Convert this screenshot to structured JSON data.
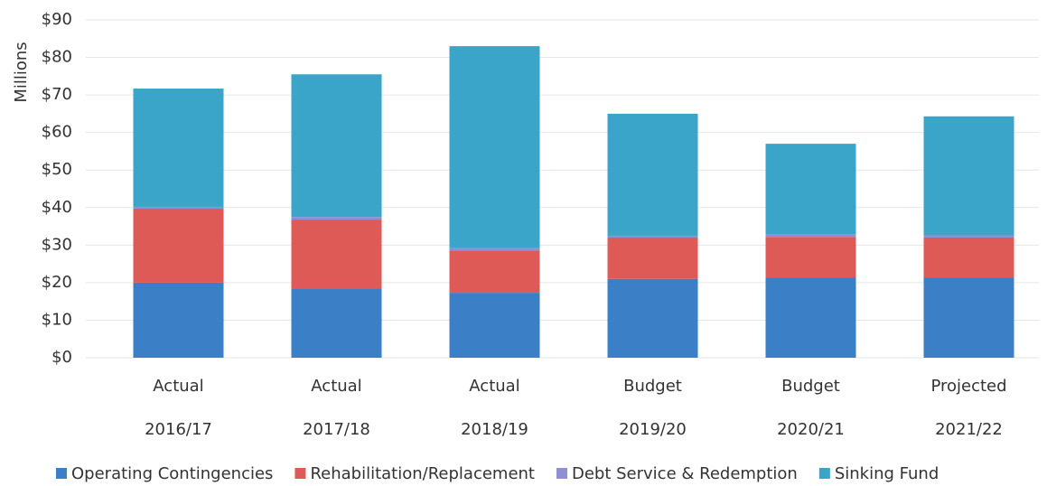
{
  "chart_data": {
    "type": "stacked-bar",
    "y_label": "Millions",
    "categories": [
      [
        "Actual",
        "2016/17"
      ],
      [
        "Actual",
        "2017/18"
      ],
      [
        "Actual",
        "2018/19"
      ],
      [
        "Budget",
        "2019/20"
      ],
      [
        "Budget",
        "2020/21"
      ],
      [
        "Projected",
        "2021/22"
      ]
    ],
    "series": [
      {
        "name": "Operating Contingencies",
        "color": "#3b7fc6",
        "values": [
          20,
          18.5,
          17.3,
          21,
          21.4,
          21.4
        ]
      },
      {
        "name": "Rehabilitation/Replacement",
        "color": "#dd5a56",
        "values": [
          19.7,
          18.3,
          11.3,
          11,
          10.8,
          10.6
        ]
      },
      {
        "name": "Debt Service & Redemption",
        "color": "#8f8fd6",
        "values": [
          0.5,
          0.7,
          0.6,
          0.5,
          0.6,
          0.6
        ]
      },
      {
        "name": "Sinking Fund",
        "color": "#3aa5c8",
        "values": [
          31.5,
          38,
          53.8,
          32.5,
          24.2,
          31.7
        ]
      }
    ],
    "ylim": [
      0,
      90
    ],
    "yticks": [
      {
        "value": 0,
        "label": "$0"
      },
      {
        "value": 10,
        "label": "$10"
      },
      {
        "value": 20,
        "label": "$20"
      },
      {
        "value": 30,
        "label": "$30"
      },
      {
        "value": 40,
        "label": "$40"
      },
      {
        "value": 50,
        "label": "$50"
      },
      {
        "value": 60,
        "label": "$60"
      },
      {
        "value": 70,
        "label": "$70"
      },
      {
        "value": 80,
        "label": "$80"
      },
      {
        "value": 90,
        "label": "$90"
      }
    ],
    "grid": true,
    "legend": "bottom"
  }
}
